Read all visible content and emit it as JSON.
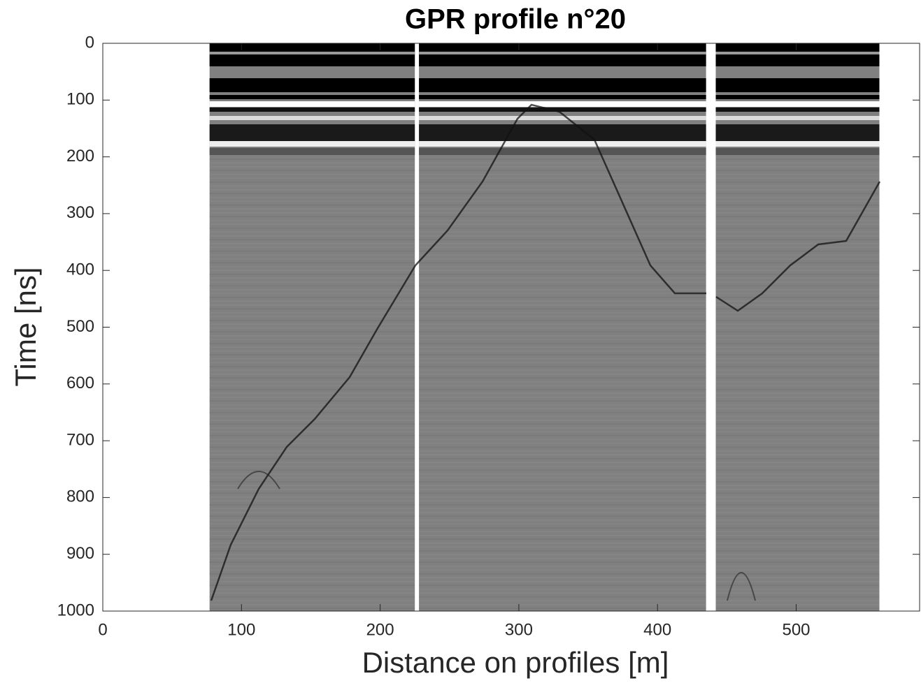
{
  "chart_data": {
    "type": "radargram",
    "title": "GPR profile n°20",
    "x_label": "Distance on profiles [m]",
    "y_label": "Time [ns]",
    "xlim": [
      0,
      589
    ],
    "xticks": [
      0,
      100,
      200,
      300,
      400,
      500
    ],
    "ylim": [
      0,
      1000
    ],
    "yticks": [
      0,
      100,
      200,
      300,
      400,
      500,
      600,
      700,
      800,
      900,
      1000
    ],
    "y_reversed": true,
    "panels": [
      [
        77,
        225
      ],
      [
        228,
        435
      ],
      [
        442,
        560
      ]
    ],
    "background": "#808080"
  }
}
